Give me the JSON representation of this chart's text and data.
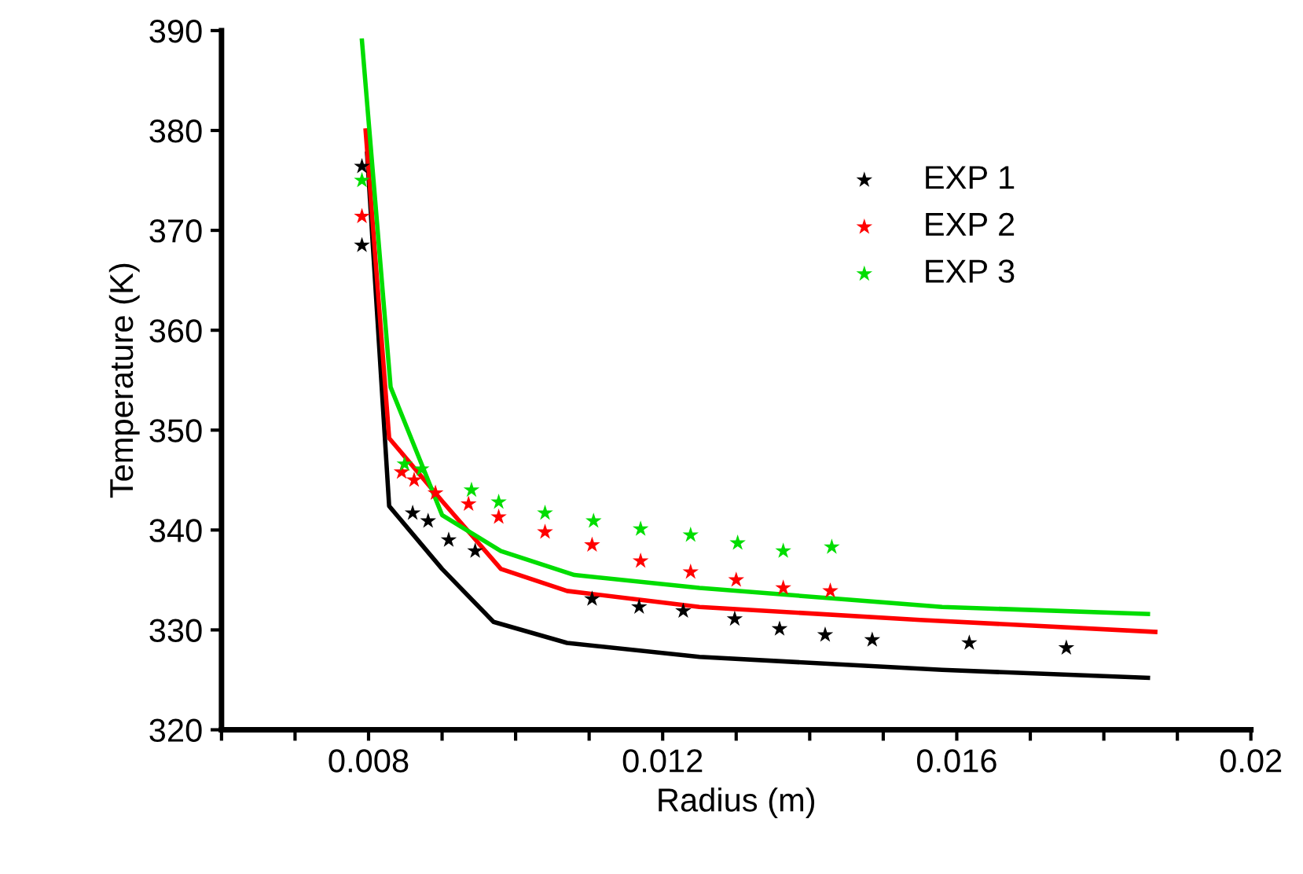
{
  "chart_data": {
    "type": "line",
    "xlabel": "Radius (m)",
    "ylabel": "Temperature (K)",
    "xlim": [
      0.006,
      0.02
    ],
    "xticks": [
      {
        "value": 0.006,
        "label": null
      },
      {
        "value": 0.007,
        "label": null
      },
      {
        "value": 0.008,
        "label": "0.008"
      },
      {
        "value": 0.009,
        "label": null
      },
      {
        "value": 0.01,
        "label": null
      },
      {
        "value": 0.011,
        "label": null
      },
      {
        "value": 0.012,
        "label": "0.012"
      },
      {
        "value": 0.013,
        "label": null
      },
      {
        "value": 0.014,
        "label": null
      },
      {
        "value": 0.015,
        "label": null
      },
      {
        "value": 0.016,
        "label": "0.016"
      },
      {
        "value": 0.017,
        "label": null
      },
      {
        "value": 0.018,
        "label": null
      },
      {
        "value": 0.019,
        "label": null
      },
      {
        "value": 0.02,
        "label": "0.02"
      }
    ],
    "ylim": [
      320,
      390
    ],
    "yticks": [
      320,
      330,
      340,
      350,
      360,
      370,
      380,
      390
    ],
    "grid": false,
    "legend": "top right",
    "series": [
      {
        "color": "#000000",
        "marker": "none",
        "x": [
          0.00798,
          0.00828,
          0.009,
          0.0097,
          0.0107,
          0.0125,
          0.0158,
          0.0186
        ],
        "values": [
          377.7,
          342.4,
          336.1,
          330.8,
          328.7,
          327.3,
          326.0,
          325.2
        ]
      },
      {
        "color": "#ff0000",
        "marker": "none",
        "x": [
          0.00796,
          0.00828,
          0.009,
          0.0098,
          0.0107,
          0.0125,
          0.0155,
          0.0187
        ],
        "values": [
          380,
          349.2,
          342.9,
          336.1,
          333.9,
          332.3,
          331.0,
          329.8
        ]
      },
      {
        "color": "#00dd00",
        "marker": "none",
        "x": [
          0.00791,
          0.0083,
          0.009,
          0.0098,
          0.0108,
          0.0125,
          0.0158,
          0.0186
        ],
        "values": [
          389,
          354.3,
          341.5,
          337.9,
          335.5,
          334.2,
          332.3,
          331.6
        ]
      },
      {
        "type": "scatter",
        "name": "EXP 1",
        "color": "#000000",
        "marker": "star",
        "x": [
          0.00791,
          0.00791,
          0.0086,
          0.00881,
          0.00909,
          0.00945,
          0.01104,
          0.01168,
          0.01228,
          0.01298,
          0.01359,
          0.01421,
          0.01485,
          0.01617,
          0.01749
        ],
        "values": [
          376.4,
          368.5,
          341.7,
          340.9,
          339.0,
          337.9,
          333.1,
          332.3,
          331.9,
          331.1,
          330.1,
          329.5,
          329.0,
          328.7,
          328.2
        ]
      },
      {
        "type": "scatter",
        "name": "EXP 2",
        "color": "#ff0000",
        "marker": "star",
        "x": [
          0.00791,
          0.00845,
          0.00862,
          0.00891,
          0.00936,
          0.00977,
          0.0104,
          0.01104,
          0.0117,
          0.01238,
          0.013,
          0.01364,
          0.01428
        ],
        "values": [
          371.4,
          345.8,
          345.0,
          343.7,
          342.6,
          341.3,
          339.8,
          338.5,
          336.9,
          335.8,
          335.0,
          334.2,
          333.9
        ]
      },
      {
        "type": "scatter",
        "name": "EXP 3",
        "color": "#00dd00",
        "marker": "star",
        "x": [
          0.00791,
          0.00849,
          0.00872,
          0.0094,
          0.00977,
          0.0104,
          0.01106,
          0.0117,
          0.01238,
          0.01302,
          0.01364,
          0.0143
        ],
        "values": [
          375,
          346.6,
          346.1,
          344.0,
          342.8,
          341.7,
          340.9,
          340.1,
          339.5,
          338.7,
          337.9,
          338.3
        ]
      }
    ]
  }
}
